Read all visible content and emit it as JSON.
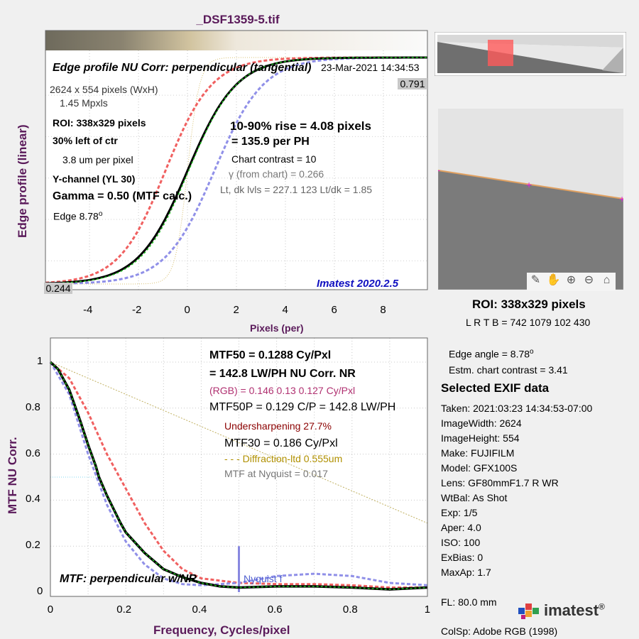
{
  "window_title": "_DSF1359-5.tif",
  "top_chart": {
    "title": "Edge profile  NU Corr: perpendicular (tangential)",
    "timestamp": "23-Mar-2021 14:34:53",
    "ylabel": "Edge profile (linear)",
    "xlabel": "Pixels (per)",
    "xticks": [
      "-4",
      "-2",
      "0",
      "2",
      "4",
      "6",
      "8"
    ],
    "top_value": "0.791",
    "bottom_value": "0.244",
    "info": {
      "size": "2624 x 554 pixels (WxH)",
      "mpxls": "1.45 Mpxls",
      "roi": "ROI:  338x329 pixels",
      "loc": "30% left of ctr",
      "um": "3.8 um per pixel",
      "channel": "Y-channel  (YL 30)",
      "gamma": "Gamma = 0.50 (MTF calc.)",
      "edge": "Edge   8.78",
      "edge_sup": "o"
    },
    "results": {
      "rise": "10-90% rise = 4.08 pixels",
      "per_ph": "=  135.9 per PH",
      "contrast": "Chart contrast = 10",
      "gamma_chart": "γ (from chart) = 0.266",
      "levels": "Lt, dk lvls = 227.1  123  Lt/dk = 1.85"
    },
    "version": "Imatest 2020.2.5"
  },
  "bottom_chart": {
    "ylabel": "MTF  NU Corr.",
    "xlabel": "Frequency, Cycles/pixel",
    "xticks": [
      "0",
      "0.2",
      "0.4",
      "0.6",
      "0.8",
      "1"
    ],
    "yticks": [
      "0",
      "0.2",
      "0.4",
      "0.6",
      "0.8",
      "1"
    ],
    "label": "MTF: perpendicular w/NR",
    "nyquist": "Nyquist f",
    "results": {
      "mtf50": "MTF50 = 0.1288 Cy/Pxl",
      "lwph": "= 142.8 LW/PH  NU Corr.  NR",
      "rgb": "(RGB) = 0.146  0.13  0.127 Cy/Pxl",
      "mtf50p": "MTF50P = 0.129 C/P = 142.8 LW/PH",
      "under": "Undersharpening 27.7%",
      "mtf30": "MTF30 = 0.186 Cy/Pxl",
      "diff": "- - - Diffraction-ltd  0.555um",
      "nyq": "MTF at Nyquist = 0.017"
    }
  },
  "side": {
    "roi": "ROI:  338x329 pixels",
    "lrtb": "L R  T B = 742  1079   102  430",
    "edge_angle": "Edge angle = 8.78",
    "edge_angle_sup": "o",
    "contrast": "Estm. chart contrast = 3.41",
    "exif_title": "Selected EXIF data",
    "exif": [
      "Taken: 2021:03:23 14:34:53-07:00",
      "ImageWidth:  2624",
      "ImageHeight:  554",
      "Make:  FUJIFILM",
      "Model:  GFX100S",
      "Lens:   GF80mmF1.7 R WR",
      "WtBal:  As Shot",
      "Exp:    1/5",
      "Aper:   4.0",
      "ISO:    100",
      "ExBias:  0",
      "MaxAp:  1.7",
      "",
      "FL:      80.0 mm"
    ],
    "colorspace": "ColSp:  Adobe RGB (1998)",
    "logo": "imatest",
    "logo_mark": "®"
  },
  "toolbar_icons": [
    "edit-icon",
    "pan-hand-icon",
    "zoom-in-icon",
    "zoom-out-icon",
    "home-icon"
  ],
  "colors": {
    "title": "#5a1a5a",
    "red": "#f06060",
    "blue": "#9090e8",
    "green": "#20c020",
    "version": "#1010c0",
    "diff": "#b09000",
    "under": "#8b0000",
    "rgb": "#b03070"
  },
  "chart_data": [
    {
      "type": "line",
      "title": "Edge profile  NU Corr: perpendicular (tangential)",
      "xlabel": "Pixels (per)",
      "ylabel": "Edge profile (linear)",
      "xlim": [
        -5.8,
        9.8
      ],
      "ylim": [
        0.244,
        0.791
      ],
      "grid": true,
      "series": [
        {
          "x": [
            -5.8,
            -4,
            -3,
            -2,
            -1.5,
            -1,
            -0.5,
            0,
            0.5,
            1,
            1.5,
            2,
            3,
            4,
            5,
            6,
            8,
            9.8
          ],
          "y": [
            0.248,
            0.255,
            0.263,
            0.29,
            0.32,
            0.365,
            0.43,
            0.5,
            0.57,
            0.63,
            0.675,
            0.71,
            0.75,
            0.773,
            0.782,
            0.787,
            0.79,
            0.791
          ]
        }
      ]
    },
    {
      "type": "line",
      "title": "MTF: perpendicular w/NR",
      "xlabel": "Frequency, Cycles/pixel",
      "ylabel": "MTF  NU Corr.",
      "xlim": [
        0,
        1
      ],
      "ylim": [
        0,
        1
      ],
      "grid": true,
      "series": [
        {
          "x": [
            0,
            0.02,
            0.05,
            0.08,
            0.1,
            0.12,
            0.1288,
            0.15,
            0.186,
            0.2,
            0.25,
            0.3,
            0.35,
            0.4,
            0.45,
            0.5,
            0.6,
            0.7,
            0.8,
            0.9,
            1.0
          ],
          "y": [
            1,
            0.97,
            0.88,
            0.74,
            0.64,
            0.55,
            0.5,
            0.42,
            0.3,
            0.26,
            0.17,
            0.1,
            0.065,
            0.04,
            0.025,
            0.02,
            0.025,
            0.025,
            0.02,
            0.012,
            0.02
          ]
        }
      ]
    }
  ]
}
